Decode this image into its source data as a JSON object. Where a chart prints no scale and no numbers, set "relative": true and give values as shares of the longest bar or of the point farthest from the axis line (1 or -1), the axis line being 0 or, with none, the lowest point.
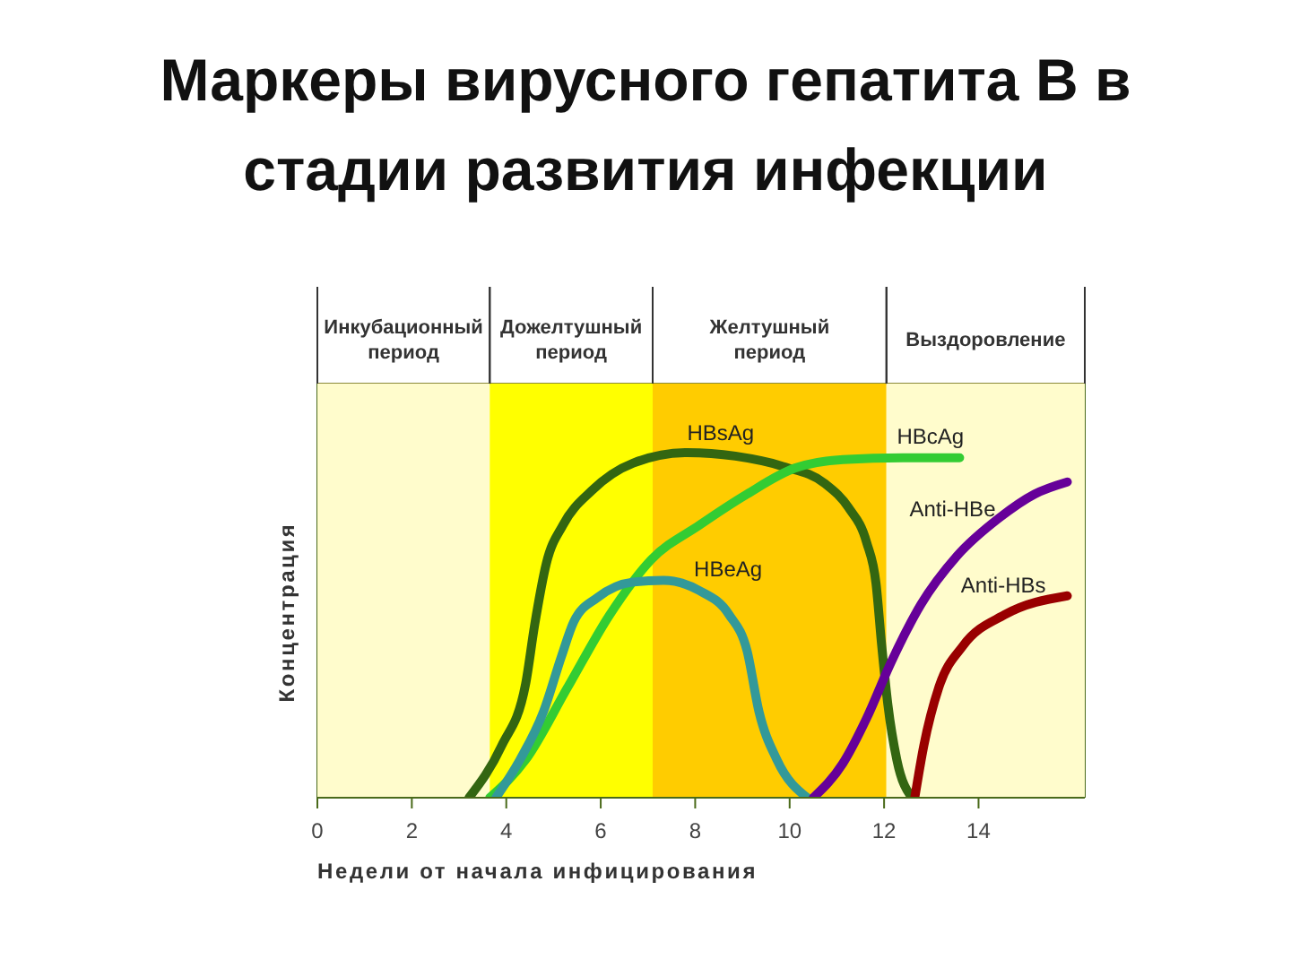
{
  "chart_data": {
    "type": "line",
    "title": "Маркеры вирусного гепатита В в стадии развития инфекции",
    "xlabel": "Недели от начала инфицирования",
    "ylabel": "Концентрация",
    "relative": true,
    "xlim": [
      0,
      16.25
    ],
    "xticks": [
      0,
      2,
      4,
      6,
      8,
      10,
      12,
      14
    ],
    "line_style": "solid",
    "marker": "none",
    "bands": [
      {
        "axis": "x",
        "from": 0,
        "to": 3.65,
        "label": "Инкубационный период",
        "color": "#fffccc"
      },
      {
        "axis": "x",
        "from": 3.65,
        "to": 7.1,
        "label": "Дожелтушный период",
        "color": "#ffff00"
      },
      {
        "axis": "x",
        "from": 7.1,
        "to": 12.05,
        "label": "Желтушный период",
        "color": "#ffcc00"
      },
      {
        "axis": "x",
        "from": 12.05,
        "to": 16.25,
        "label": "Выздоровление",
        "color": "#fffccc"
      }
    ],
    "series": [
      {
        "name": "HBsAg",
        "color": "#336611",
        "x": [
          3.21,
          3.9,
          4.41,
          4.6,
          4.85,
          5.2,
          5.81,
          6.69,
          7.83,
          8.85,
          9.86,
          10.75,
          11.25,
          11.63,
          11.83,
          11.95,
          12.08,
          12.27,
          12.59
        ],
        "values": [
          0,
          0.15,
          0.33,
          0.5,
          0.68,
          0.79,
          0.89,
          0.97,
          1,
          0.99,
          0.96,
          0.91,
          0.84,
          0.74,
          0.62,
          0.44,
          0.27,
          0.11,
          0
        ]
      },
      {
        "name": "HBcAg",
        "color": "#33cc33",
        "x": [
          3.65,
          4.41,
          5.3,
          6.19,
          7.07,
          8.09,
          9.1,
          10.11,
          11.13,
          12.4,
          13.6
        ],
        "values": [
          0,
          0.11,
          0.32,
          0.53,
          0.69,
          0.79,
          0.88,
          0.955,
          0.98,
          0.985,
          0.985
        ]
      },
      {
        "name": "HBeAg",
        "color": "#339999",
        "x": [
          3.78,
          4.29,
          4.79,
          5.17,
          5.43,
          5.93,
          6.69,
          7.33,
          8.09,
          8.72,
          9.1,
          9.35,
          9.73,
          10.37
        ],
        "values": [
          0,
          0.11,
          0.25,
          0.41,
          0.51,
          0.58,
          0.625,
          0.63,
          0.6,
          0.53,
          0.425,
          0.25,
          0.11,
          0
        ]
      },
      {
        "name": "Anti-HBe",
        "color": "#660099",
        "x": [
          10.5,
          11.13,
          11.63,
          12.14,
          12.78,
          13.54,
          14.43,
          15.19,
          15.88
        ],
        "values": [
          0,
          0.1,
          0.23,
          0.39,
          0.56,
          0.7,
          0.81,
          0.88,
          0.915
        ]
      },
      {
        "name": "Anti-HBs",
        "color": "#990000",
        "x": [
          12.65,
          12.84,
          13.16,
          13.67,
          14.55,
          15.88
        ],
        "values": [
          0,
          0.15,
          0.32,
          0.44,
          0.53,
          0.585
        ]
      }
    ]
  }
}
